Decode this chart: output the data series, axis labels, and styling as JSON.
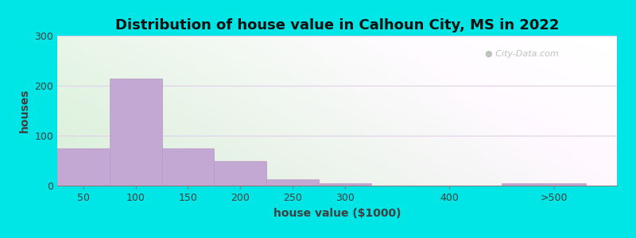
{
  "title": "Distribution of house value in Calhoun City, MS in 2022",
  "xlabel": "house value ($1000)",
  "ylabel": "houses",
  "bin_edges": [
    25,
    75,
    125,
    175,
    225,
    275,
    325,
    450,
    530
  ],
  "bar_values": [
    75,
    215,
    75,
    50,
    12,
    5,
    0,
    5
  ],
  "tick_positions": [
    50,
    100,
    150,
    200,
    250,
    300,
    400,
    500
  ],
  "tick_labels": [
    "50",
    "100",
    "150",
    "200",
    "250",
    "300",
    "400",
    ">500"
  ],
  "bar_color": "#c4a8d4",
  "bar_edgecolor": "#b898c8",
  "ylim": [
    0,
    300
  ],
  "yticks": [
    0,
    100,
    200,
    300
  ],
  "xlim": [
    25,
    560
  ],
  "background_outer": "#00e5e5",
  "title_fontsize": 13,
  "axis_fontsize": 9,
  "watermark_text": "City-Data.com",
  "watermark_color": "#b0bab0",
  "grid_color": "#e0d0e8",
  "grid_linewidth": 0.8
}
